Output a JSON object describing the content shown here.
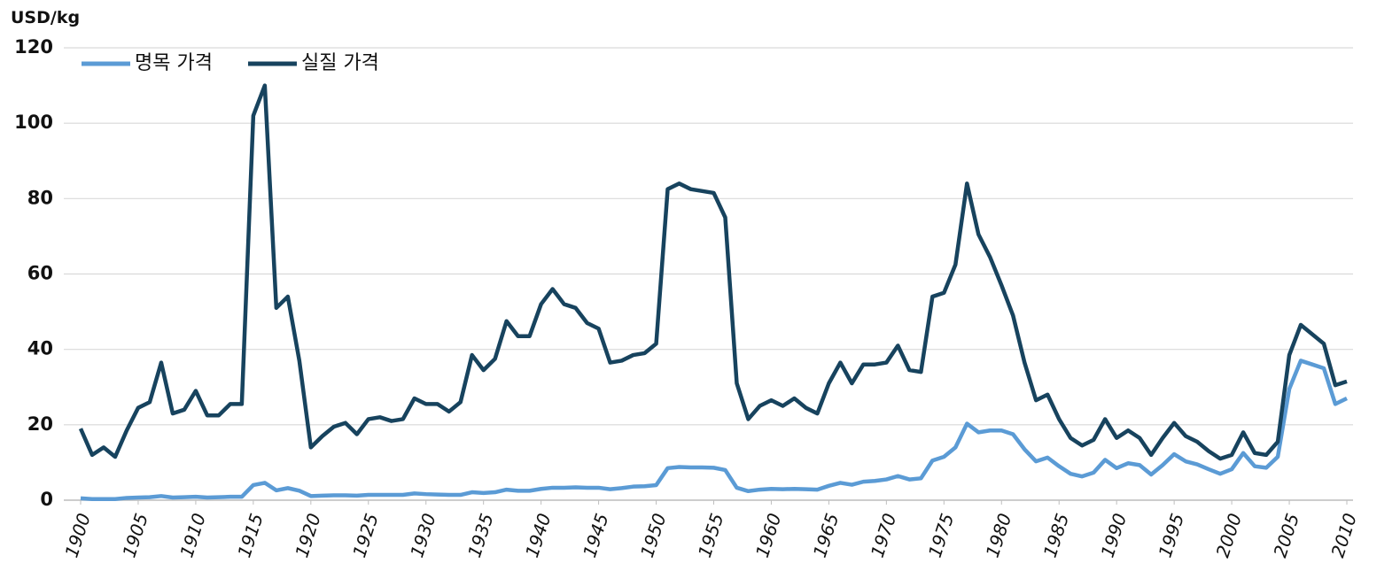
{
  "chart_data": {
    "type": "line",
    "y_axis_label": "USD/kg",
    "x": [
      1900,
      1901,
      1902,
      1903,
      1904,
      1905,
      1906,
      1907,
      1908,
      1909,
      1910,
      1911,
      1912,
      1913,
      1914,
      1915,
      1916,
      1917,
      1918,
      1919,
      1920,
      1921,
      1922,
      1923,
      1924,
      1925,
      1926,
      1927,
      1928,
      1929,
      1930,
      1931,
      1932,
      1933,
      1934,
      1935,
      1936,
      1937,
      1938,
      1939,
      1940,
      1941,
      1942,
      1943,
      1944,
      1945,
      1946,
      1947,
      1948,
      1949,
      1950,
      1951,
      1952,
      1953,
      1954,
      1955,
      1956,
      1957,
      1958,
      1959,
      1960,
      1961,
      1962,
      1963,
      1964,
      1965,
      1966,
      1967,
      1968,
      1969,
      1970,
      1971,
      1972,
      1973,
      1974,
      1975,
      1976,
      1977,
      1978,
      1979,
      1980,
      1981,
      1982,
      1983,
      1984,
      1985,
      1986,
      1987,
      1988,
      1989,
      1990,
      1991,
      1992,
      1993,
      1994,
      1995,
      1996,
      1997,
      1998,
      1999,
      2000,
      2001,
      2002,
      2003,
      2004,
      2005,
      2006,
      2007,
      2008,
      2009,
      2010
    ],
    "series": [
      {
        "name": "명목 가격",
        "color": "#5b9bd5",
        "values": [
          0.5,
          0.3,
          0.3,
          0.3,
          0.6,
          0.7,
          0.8,
          1.1,
          0.7,
          0.8,
          0.9,
          0.7,
          0.8,
          0.9,
          0.9,
          4,
          4.6,
          2.6,
          3.2,
          2.5,
          1.1,
          1.2,
          1.3,
          1.3,
          1.2,
          1.4,
          1.4,
          1.4,
          1.4,
          1.8,
          1.6,
          1.5,
          1.4,
          1.4,
          2.1,
          1.9,
          2.1,
          2.8,
          2.5,
          2.5,
          3.0,
          3.3,
          3.3,
          3.4,
          3.3,
          3.3,
          2.9,
          3.2,
          3.6,
          3.7,
          4.0,
          8.5,
          8.8,
          8.7,
          8.7,
          8.6,
          8.0,
          3.3,
          2.4,
          2.8,
          3.0,
          2.9,
          3.0,
          2.9,
          2.8,
          3.8,
          4.6,
          4.1,
          4.9,
          5.1,
          5.5,
          6.4,
          5.5,
          5.8,
          10.5,
          11.5,
          14,
          20.3,
          18,
          18.5,
          18.5,
          17.5,
          13.5,
          10.3,
          11.3,
          9,
          7,
          6.3,
          7.3,
          10.7,
          8.5,
          9.8,
          9.3,
          6.8,
          9.3,
          12.2,
          10.3,
          9.5,
          8.2,
          7,
          8.2,
          12.5,
          9,
          8.6,
          11.5,
          29.5,
          37,
          36,
          35,
          25.5,
          27
        ]
      },
      {
        "name": "실질 가격",
        "color": "#17435e",
        "values": [
          19,
          12,
          14,
          11.5,
          18.5,
          24.5,
          26,
          36.5,
          23,
          24,
          29,
          22.5,
          22.5,
          25.5,
          25.5,
          102,
          110,
          51,
          54,
          37,
          14,
          17,
          19.5,
          20.5,
          17.5,
          21.5,
          22,
          21,
          21.5,
          27,
          25.5,
          25.5,
          23.5,
          26,
          38.5,
          34.5,
          37.5,
          47.5,
          43.5,
          43.5,
          52,
          56,
          52,
          51,
          47,
          45.5,
          36.5,
          37,
          38.5,
          39,
          41.5,
          82.5,
          84,
          82.5,
          82,
          81.5,
          75,
          31,
          21.5,
          25,
          26.5,
          25,
          27,
          24.5,
          23,
          31,
          36.5,
          31,
          36,
          36,
          36.5,
          41,
          34.5,
          34,
          54,
          55,
          62.5,
          84,
          70.5,
          64.5,
          57,
          49,
          36.5,
          26.5,
          28,
          21.5,
          16.5,
          14.5,
          16,
          21.5,
          16.5,
          18.5,
          16.5,
          12,
          16.5,
          20.5,
          17,
          15.5,
          13,
          11,
          12,
          18,
          12.5,
          12,
          15.5,
          38.5,
          46.5,
          44,
          41.5,
          30.5,
          31.5
        ]
      }
    ],
    "xlim": [
      1900,
      2010
    ],
    "xticks": [
      1900,
      1905,
      1910,
      1915,
      1920,
      1925,
      1930,
      1935,
      1940,
      1945,
      1950,
      1955,
      1960,
      1965,
      1970,
      1975,
      1980,
      1985,
      1990,
      1995,
      2000,
      2005,
      2010
    ],
    "ylim": [
      0,
      120
    ],
    "yticks": [
      0,
      20,
      40,
      60,
      80,
      100,
      120
    ],
    "grid": true,
    "legend": "top-left"
  }
}
